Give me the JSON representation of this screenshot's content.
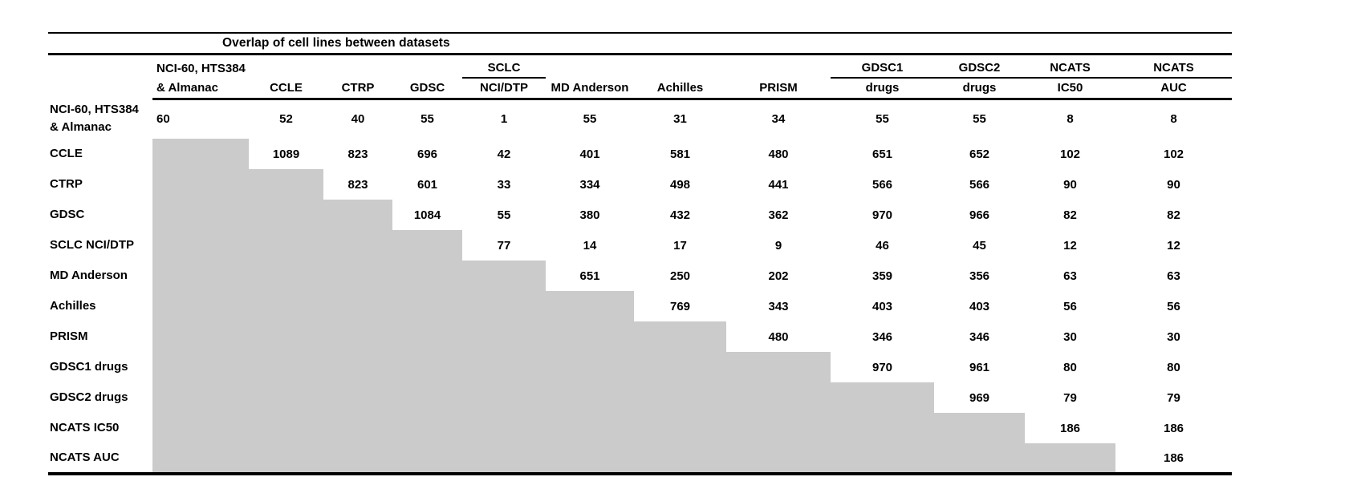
{
  "chart_data": {
    "type": "table",
    "title": "Overlap of cell lines between datasets",
    "shaded_color": "#cbcbcb",
    "header_row1": [
      "",
      "NCI-60, HTS384",
      "",
      "",
      "",
      "SCLC",
      "",
      "",
      "",
      "GDSC1",
      "GDSC2",
      "NCATS",
      "NCATS"
    ],
    "header_row2": [
      "",
      "& Almanac",
      "CCLE",
      "CTRP",
      "GDSC",
      "NCI/DTP",
      "MD Anderson",
      "Achilles",
      "PRISM",
      "drugs",
      "drugs",
      "IC50",
      "AUC"
    ],
    "group_underline_cols": [
      5,
      9,
      10,
      11,
      12
    ],
    "rows": [
      {
        "label": "NCI-60, HTS384\n& Almanac",
        "shaded_before": 0,
        "values": [
          60,
          52,
          40,
          55,
          1,
          55,
          31,
          34,
          55,
          55,
          8,
          8
        ]
      },
      {
        "label": "CCLE",
        "shaded_before": 1,
        "values": [
          1089,
          823,
          696,
          42,
          401,
          581,
          480,
          651,
          652,
          102,
          102
        ]
      },
      {
        "label": "CTRP",
        "shaded_before": 2,
        "values": [
          823,
          601,
          33,
          334,
          498,
          441,
          566,
          566,
          90,
          90
        ]
      },
      {
        "label": "GDSC",
        "shaded_before": 3,
        "values": [
          1084,
          55,
          380,
          432,
          362,
          970,
          966,
          82,
          82
        ]
      },
      {
        "label": "SCLC NCI/DTP",
        "shaded_before": 4,
        "values": [
          77,
          14,
          17,
          9,
          46,
          45,
          12,
          12
        ]
      },
      {
        "label": "MD Anderson",
        "shaded_before": 5,
        "values": [
          651,
          250,
          202,
          359,
          356,
          63,
          63
        ]
      },
      {
        "label": "Achilles",
        "shaded_before": 6,
        "values": [
          769,
          343,
          403,
          403,
          56,
          56
        ]
      },
      {
        "label": "PRISM",
        "shaded_before": 7,
        "values": [
          480,
          346,
          346,
          30,
          30
        ]
      },
      {
        "label": "GDSC1 drugs",
        "shaded_before": 8,
        "values": [
          970,
          961,
          80,
          80
        ]
      },
      {
        "label": "GDSC2 drugs",
        "shaded_before": 9,
        "values": [
          969,
          79,
          79
        ]
      },
      {
        "label": "NCATS IC50",
        "shaded_before": 10,
        "values": [
          186,
          186
        ]
      },
      {
        "label": "NCATS AUC",
        "shaded_before": 11,
        "values": [
          186
        ]
      }
    ]
  }
}
